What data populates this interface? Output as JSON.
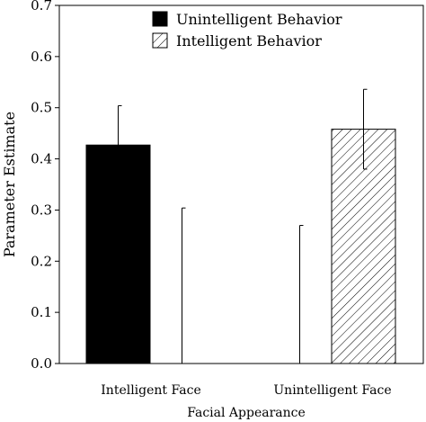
{
  "chart_data": {
    "type": "bar",
    "categories": [
      "Intelligent Face",
      "Unintelligent Face"
    ],
    "series": [
      {
        "name": "Unintelligent Behavior",
        "fill": "solid",
        "color": "#000000",
        "values": [
          0.427,
          0.0
        ],
        "error": [
          0.077,
          0.27
        ]
      },
      {
        "name": "Intelligent Behavior",
        "fill": "hatch",
        "color": "#000000",
        "values": [
          0.0,
          0.458
        ],
        "error": [
          0.304,
          0.078
        ]
      }
    ],
    "xlabel": "Facial Appearance",
    "ylabel": "Parameter Estimate",
    "ylim": [
      0,
      0.7
    ],
    "yticks": [
      "0.0",
      "0.1",
      "0.2",
      "0.3",
      "0.4",
      "0.5",
      "0.6",
      "0.7"
    ],
    "grid": false,
    "legend_position": "top-center"
  }
}
